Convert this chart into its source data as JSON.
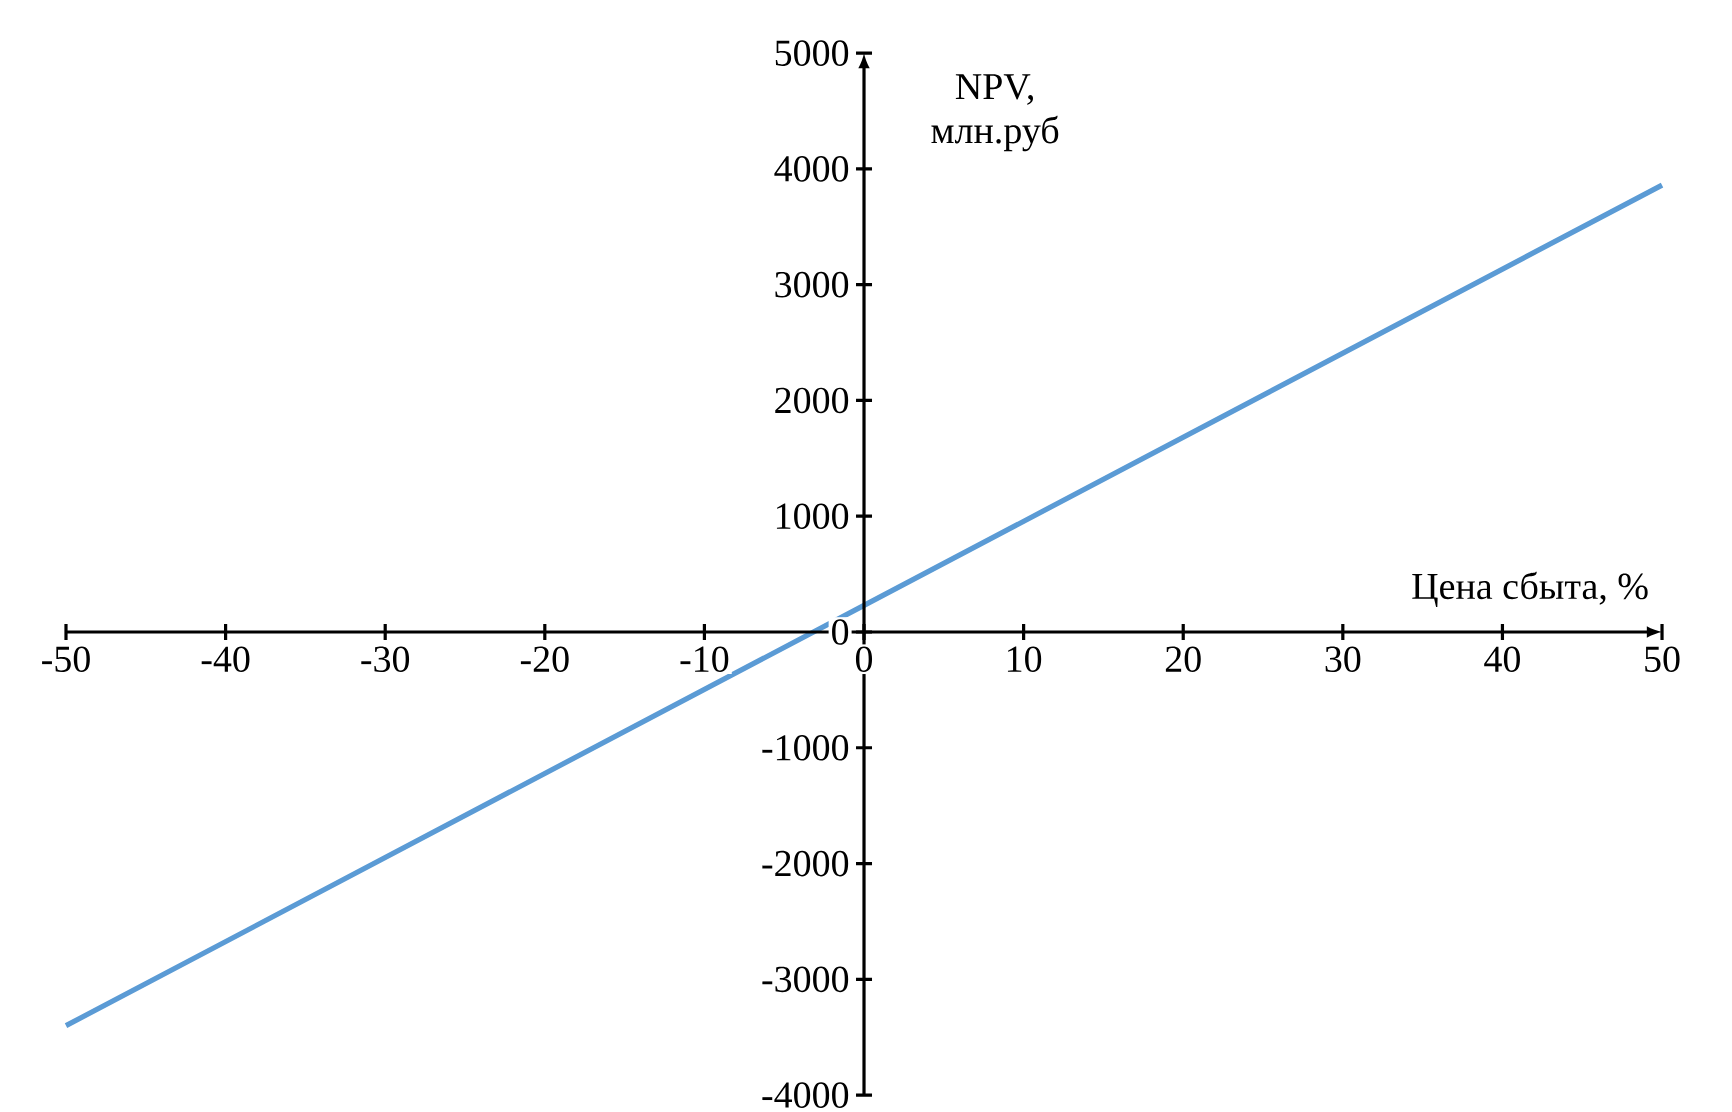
{
  "chart_data": {
    "type": "line",
    "xlabel": "Цена сбыта, %",
    "ylabel": "NPV, млн.руб",
    "x": [
      -50,
      0,
      50
    ],
    "series": [
      {
        "color": "#5b9bd5",
        "values": [
          -3400,
          230,
          3860
        ]
      }
    ],
    "xlim": [
      -50,
      50
    ],
    "ylim": [
      -4000,
      5000
    ],
    "xticks": [
      -50,
      -40,
      -30,
      -20,
      -10,
      0,
      10,
      20,
      30,
      40,
      50
    ],
    "yticks": [
      -4000,
      -3000,
      -2000,
      -1000,
      0,
      1000,
      2000,
      3000,
      4000,
      5000
    ],
    "grid": false,
    "marker": "none",
    "line_style": "solid"
  }
}
